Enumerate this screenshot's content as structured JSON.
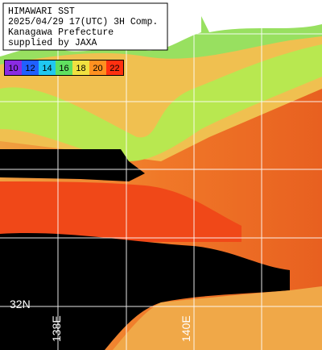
{
  "header": {
    "lines": [
      "HIMAWARI SST",
      "2025/04/29 17(UTC) 3H Comp.",
      "Kanagawa Prefecture",
      "supplied by JAXA"
    ]
  },
  "legend": {
    "items": [
      {
        "label": "10",
        "color": "#8a2be2"
      },
      {
        "label": "12",
        "color": "#2060ff"
      },
      {
        "label": "14",
        "color": "#20c8f0"
      },
      {
        "label": "16",
        "color": "#60e060"
      },
      {
        "label": "18",
        "color": "#f0e040"
      },
      {
        "label": "20",
        "color": "#ff9020"
      },
      {
        "label": "22",
        "color": "#ff3010"
      }
    ]
  },
  "axes": {
    "lat_label": "32N",
    "lon_labels": [
      "138E",
      "140E"
    ]
  }
}
